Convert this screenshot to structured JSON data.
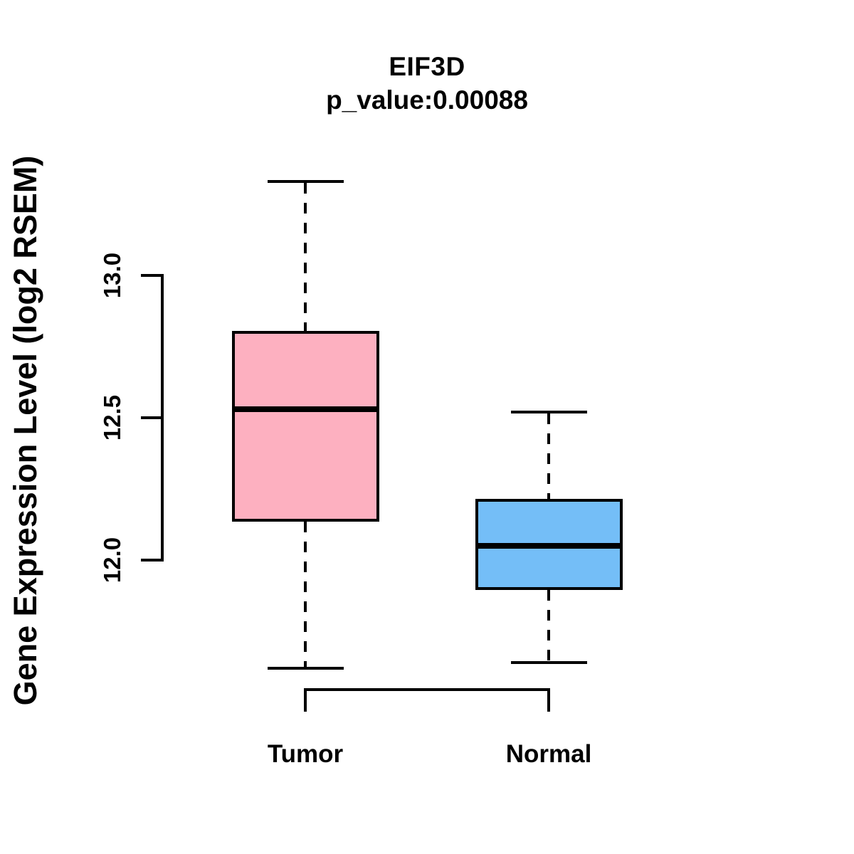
{
  "chart_data": {
    "type": "boxplot",
    "title": "EIF3D",
    "subtitle": "p_value:0.00088",
    "ylabel": "Gene Expression Level (log2 RSEM)",
    "xlabel": "",
    "categories": [
      "Tumor",
      "Normal"
    ],
    "y_axis_ticks": [
      "12.0",
      "12.5",
      "13.0"
    ],
    "y_axis_tick_values": [
      12.0,
      12.5,
      13.0
    ],
    "y_axis_shown_range": [
      12.0,
      13.0
    ],
    "grid": false,
    "legend": false,
    "line_color": "#000000",
    "background_color": "#FFFFFF",
    "series": [
      {
        "name": "Tumor",
        "fill_color": "#FDB0C0",
        "whisker_low": 11.62,
        "q1": 12.14,
        "median": 12.53,
        "q3": 12.8,
        "whisker_high": 13.33
      },
      {
        "name": "Normal",
        "fill_color": "#74BEF7",
        "whisker_low": 11.64,
        "q1": 11.9,
        "median": 12.05,
        "q3": 12.21,
        "whisker_high": 12.52
      }
    ]
  }
}
